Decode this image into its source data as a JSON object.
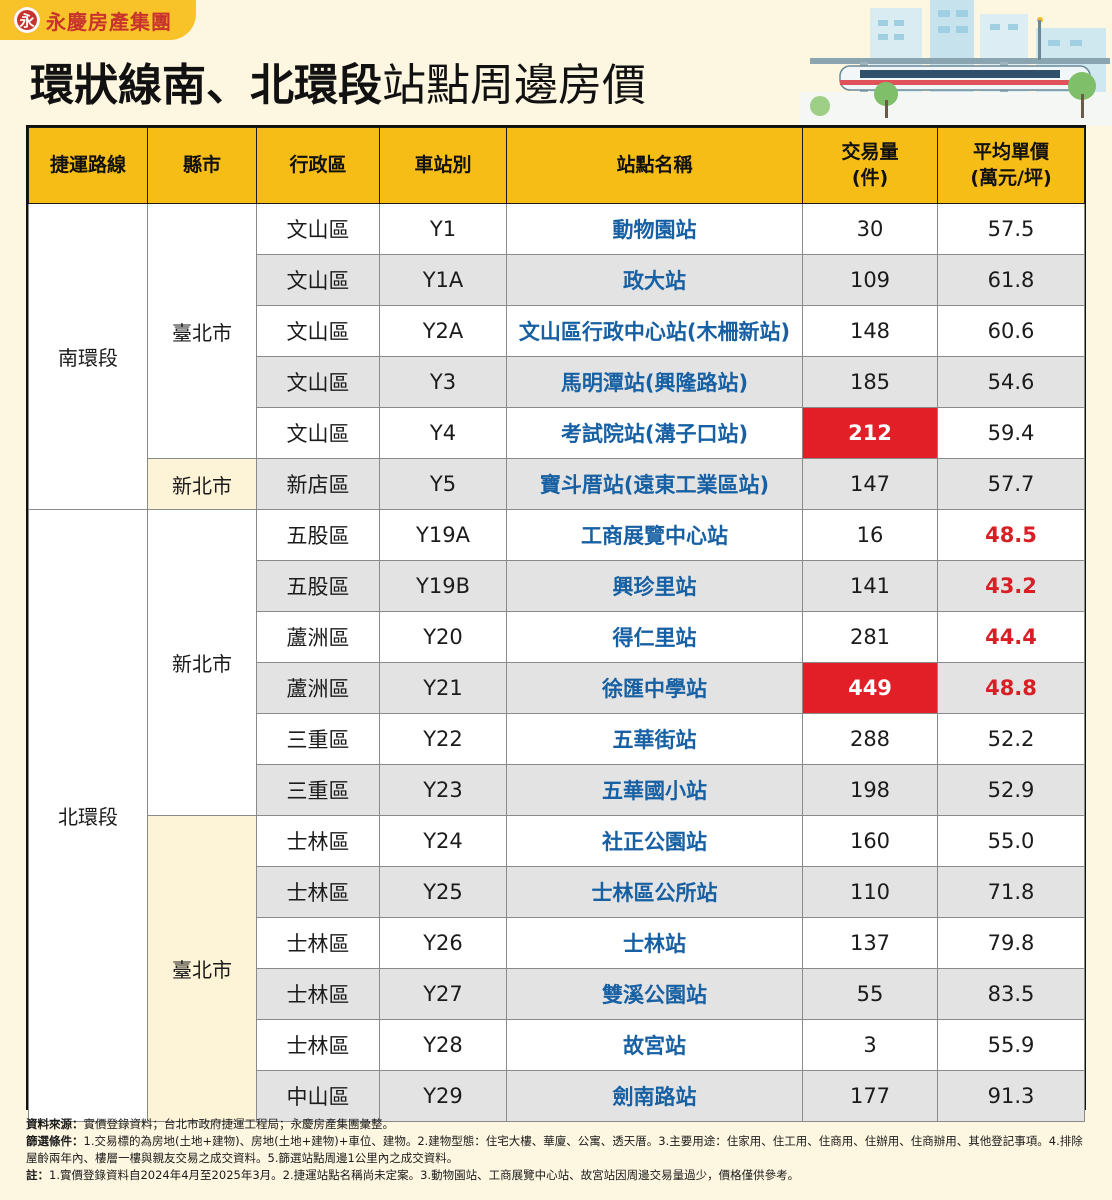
{
  "brand": {
    "logo": "永",
    "name": "永慶房產集團"
  },
  "title": {
    "bold": "環狀線南、北環段",
    "light": "站點周邊房價"
  },
  "colors": {
    "accent": "#f6bd16",
    "highlight": "#e21f26",
    "station_blue": "#1760a3"
  },
  "table": {
    "headers": {
      "segment": "捷運路線",
      "county": "縣市",
      "district": "行政區",
      "code": "車站別",
      "name": "站點名稱",
      "volume_l1": "交易量",
      "volume_l2": "(件)",
      "price_l1": "平均單價",
      "price_l2": "(萬元/坪)"
    },
    "segments": [
      "南環段",
      "北環段"
    ],
    "counties": [
      "臺北市",
      "新北市",
      "新北市",
      "臺北市"
    ],
    "rows": [
      {
        "district": "文山區",
        "code": "Y1",
        "name": "動物園站",
        "volume": "30",
        "price": "57.5"
      },
      {
        "district": "文山區",
        "code": "Y1A",
        "name": "政大站",
        "volume": "109",
        "price": "61.8"
      },
      {
        "district": "文山區",
        "code": "Y2A",
        "name": "文山區行政中心站(木柵新站)",
        "volume": "148",
        "price": "60.6"
      },
      {
        "district": "文山區",
        "code": "Y3",
        "name": "馬明潭站(興隆路站)",
        "volume": "185",
        "price": "54.6"
      },
      {
        "district": "文山區",
        "code": "Y4",
        "name": "考試院站(溝子口站)",
        "volume": "212",
        "price": "59.4"
      },
      {
        "district": "新店區",
        "code": "Y5",
        "name": "寶斗厝站(遠東工業區站)",
        "volume": "147",
        "price": "57.7"
      },
      {
        "district": "五股區",
        "code": "Y19A",
        "name": "工商展覽中心站",
        "volume": "16",
        "price": "48.5"
      },
      {
        "district": "五股區",
        "code": "Y19B",
        "name": "興珍里站",
        "volume": "141",
        "price": "43.2"
      },
      {
        "district": "蘆洲區",
        "code": "Y20",
        "name": "得仁里站",
        "volume": "281",
        "price": "44.4"
      },
      {
        "district": "蘆洲區",
        "code": "Y21",
        "name": "徐匯中學站",
        "volume": "449",
        "price": "48.8"
      },
      {
        "district": "三重區",
        "code": "Y22",
        "name": "五華街站",
        "volume": "288",
        "price": "52.2"
      },
      {
        "district": "三重區",
        "code": "Y23",
        "name": "五華國小站",
        "volume": "198",
        "price": "52.9"
      },
      {
        "district": "士林區",
        "code": "Y24",
        "name": "社正公園站",
        "volume": "160",
        "price": "55.0"
      },
      {
        "district": "士林區",
        "code": "Y25",
        "name": "士林區公所站",
        "volume": "110",
        "price": "71.8"
      },
      {
        "district": "士林區",
        "code": "Y26",
        "name": "士林站",
        "volume": "137",
        "price": "79.8"
      },
      {
        "district": "士林區",
        "code": "Y27",
        "name": "雙溪公園站",
        "volume": "55",
        "price": "83.5"
      },
      {
        "district": "士林區",
        "code": "Y28",
        "name": "故宮站",
        "volume": "3",
        "price": "55.9"
      },
      {
        "district": "中山區",
        "code": "Y29",
        "name": "劍南路站",
        "volume": "177",
        "price": "91.3"
      }
    ]
  },
  "notes": [
    {
      "label": "資料來源：",
      "text": "實價登錄資料；台北市政府捷運工程局；永慶房產集團彙整。"
    },
    {
      "label": "篩選條件：",
      "text": "1.交易標的為房地(土地+建物)、房地(土地+建物)+車位、建物。2.建物型態：住宅大樓、華廈、公寓、透天厝。3.主要用途：住家用、住工用、住商用、住辦用、住商辦用、其他登記事項。4.排除屋齡兩年內、樓層一樓與親友交易之成交資料。5.篩選站點周邊1公里內之成交資料。"
    },
    {
      "label": "註：",
      "text": "1.實價登錄資料自2024年4月至2025年3月。2.捷運站點名稱尚未定案。3.動物園站、工商展覽中心站、故宮站因周邊交易量過少，價格僅供參考。"
    }
  ]
}
